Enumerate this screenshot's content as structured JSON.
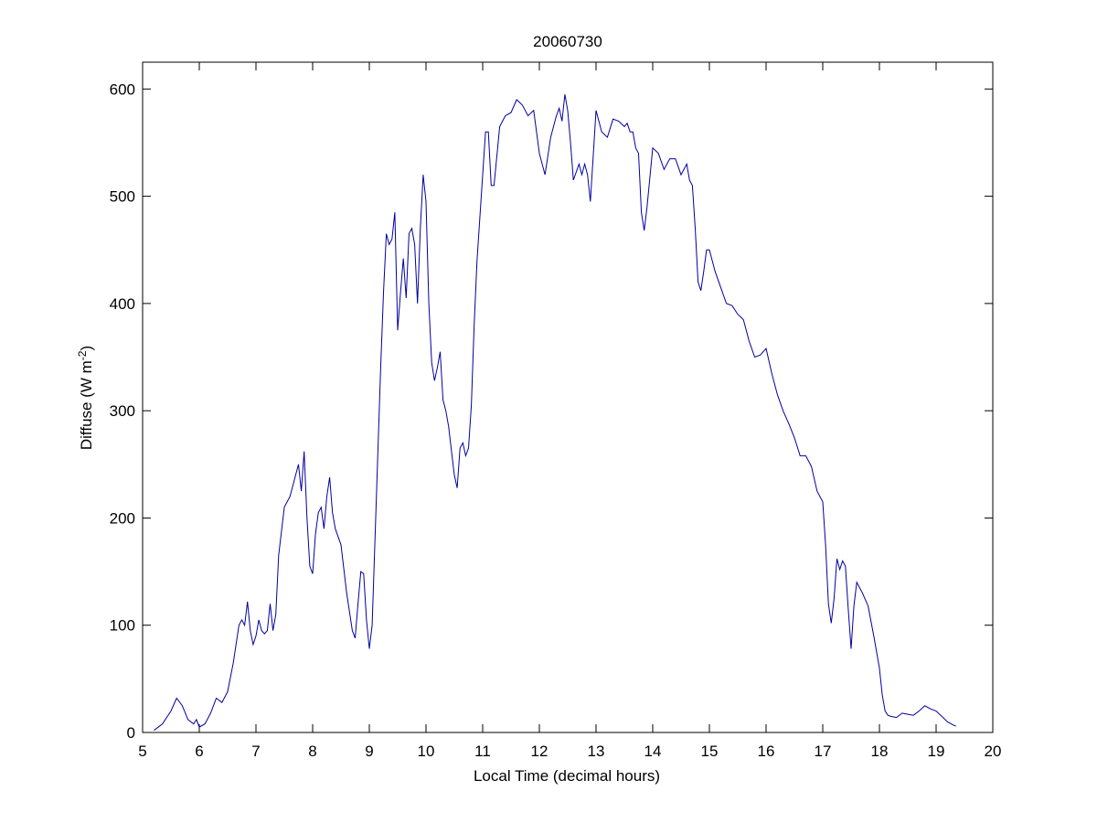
{
  "chart_data": {
    "type": "line",
    "title": "20060730",
    "xlabel": "Local Time (decimal hours)",
    "ylabel": "Diffuse (W m",
    "ylabel_sup": "-2",
    "ylabel_tail": ")",
    "xlim": [
      5,
      20
    ],
    "ylim": [
      0,
      625
    ],
    "xticks": [
      5,
      6,
      7,
      8,
      9,
      10,
      11,
      12,
      13,
      14,
      15,
      16,
      17,
      18,
      19,
      20
    ],
    "yticks": [
      0,
      100,
      200,
      300,
      400,
      500,
      600
    ],
    "grid": false,
    "line_color": "#0000a0",
    "series": [
      {
        "x": [
          5.2,
          5.35,
          5.5,
          5.6,
          5.7,
          5.8,
          5.9,
          5.95,
          6.0,
          6.1,
          6.2,
          6.3,
          6.4,
          6.5,
          6.6,
          6.7,
          6.75,
          6.8,
          6.85,
          6.9,
          6.95,
          7.0,
          7.05,
          7.1,
          7.15,
          7.2,
          7.25,
          7.3,
          7.35,
          7.4,
          7.5,
          7.6,
          7.7,
          7.75,
          7.8,
          7.85,
          7.9,
          7.95,
          8.0,
          8.05,
          8.1,
          8.15,
          8.2,
          8.25,
          8.3,
          8.35,
          8.4,
          8.5,
          8.6,
          8.7,
          8.75,
          8.8,
          8.85,
          8.9,
          8.95,
          9.0,
          9.05,
          9.1,
          9.15,
          9.2,
          9.25,
          9.3,
          9.35,
          9.4,
          9.45,
          9.5,
          9.55,
          9.6,
          9.65,
          9.7,
          9.75,
          9.8,
          9.85,
          9.9,
          9.95,
          10.0,
          10.05,
          10.1,
          10.15,
          10.2,
          10.25,
          10.3,
          10.35,
          10.4,
          10.45,
          10.5,
          10.55,
          10.6,
          10.65,
          10.7,
          10.75,
          10.8,
          10.85,
          10.9,
          11.0,
          11.05,
          11.1,
          11.15,
          11.2,
          11.3,
          11.4,
          11.5,
          11.6,
          11.7,
          11.8,
          11.9,
          12.0,
          12.1,
          12.2,
          12.3,
          12.35,
          12.4,
          12.45,
          12.5,
          12.55,
          12.6,
          12.7,
          12.75,
          12.8,
          12.85,
          12.9,
          13.0,
          13.1,
          13.2,
          13.3,
          13.4,
          13.5,
          13.55,
          13.6,
          13.65,
          13.7,
          13.75,
          13.8,
          13.85,
          13.9,
          14.0,
          14.1,
          14.2,
          14.3,
          14.4,
          14.5,
          14.6,
          14.65,
          14.7,
          14.75,
          14.8,
          14.85,
          14.9,
          14.95,
          15.0,
          15.1,
          15.2,
          15.3,
          15.4,
          15.5,
          15.6,
          15.7,
          15.8,
          15.9,
          16.0,
          16.1,
          16.2,
          16.3,
          16.4,
          16.5,
          16.6,
          16.7,
          16.8,
          16.9,
          17.0,
          17.05,
          17.1,
          17.15,
          17.2,
          17.25,
          17.3,
          17.35,
          17.4,
          17.45,
          17.5,
          17.55,
          17.6,
          17.7,
          17.8,
          17.9,
          18.0,
          18.05,
          18.1,
          18.15,
          18.2,
          18.3,
          18.4,
          18.5,
          18.6,
          18.7,
          18.8,
          18.9,
          19.0,
          19.1,
          19.2,
          19.3,
          19.35
        ],
        "y": [
          2,
          8,
          20,
          32,
          25,
          12,
          8,
          12,
          5,
          8,
          18,
          32,
          28,
          38,
          65,
          100,
          105,
          100,
          122,
          95,
          82,
          90,
          105,
          95,
          92,
          95,
          120,
          95,
          110,
          165,
          210,
          220,
          240,
          250,
          225,
          262,
          200,
          155,
          148,
          185,
          205,
          210,
          190,
          220,
          238,
          205,
          190,
          175,
          130,
          95,
          88,
          120,
          150,
          148,
          105,
          78,
          100,
          180,
          260,
          340,
          410,
          465,
          455,
          460,
          485,
          375,
          410,
          442,
          405,
          465,
          470,
          455,
          400,
          470,
          520,
          495,
          400,
          345,
          328,
          340,
          355,
          310,
          300,
          285,
          262,
          240,
          228,
          265,
          270,
          258,
          265,
          305,
          380,
          440,
          520,
          560,
          560,
          510,
          510,
          565,
          575,
          578,
          590,
          585,
          575,
          580,
          540,
          520,
          555,
          575,
          582,
          570,
          595,
          580,
          550,
          515,
          530,
          520,
          530,
          520,
          495,
          580,
          560,
          555,
          572,
          570,
          565,
          568,
          560,
          560,
          545,
          540,
          485,
          468,
          490,
          545,
          540,
          525,
          535,
          535,
          520,
          530,
          515,
          510,
          470,
          420,
          412,
          430,
          450,
          450,
          430,
          415,
          400,
          398,
          390,
          385,
          365,
          350,
          352,
          358,
          335,
          315,
          300,
          288,
          275,
          258,
          258,
          248,
          225,
          215,
          175,
          120,
          102,
          125,
          162,
          152,
          160,
          155,
          115,
          78,
          118,
          140,
          130,
          118,
          90,
          60,
          35,
          20,
          16,
          15,
          14,
          18,
          17,
          16,
          20,
          25,
          22,
          20,
          15,
          10,
          7,
          6
        ]
      }
    ]
  }
}
